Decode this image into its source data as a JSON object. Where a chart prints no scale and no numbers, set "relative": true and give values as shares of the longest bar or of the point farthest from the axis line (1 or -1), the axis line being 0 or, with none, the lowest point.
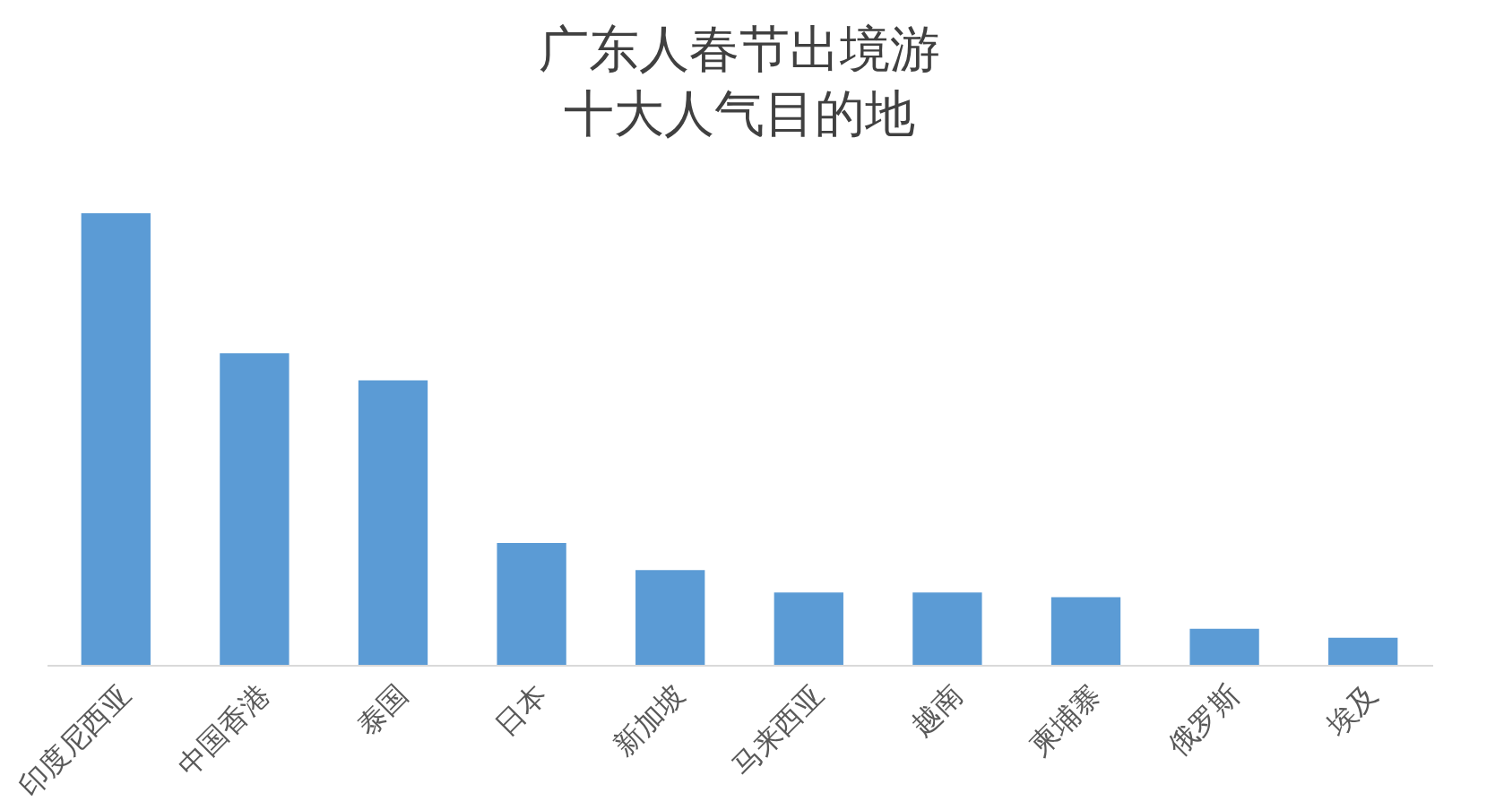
{
  "chart_data": {
    "type": "bar",
    "title": "广东人春节出境游",
    "subtitle": "十大人气目的地",
    "categories": [
      "印度尼西亚",
      "中国香港",
      "泰国",
      "日本",
      "新加坡",
      "马来西亚",
      "越南",
      "柬埔寨",
      "俄罗斯",
      "埃及"
    ],
    "values": [
      1,
      0.69,
      0.63,
      0.27,
      0.21,
      0.16,
      0.16,
      0.15,
      0.08,
      0.06
    ],
    "color": "#5b9bd5",
    "relative": true,
    "grid": false
  }
}
